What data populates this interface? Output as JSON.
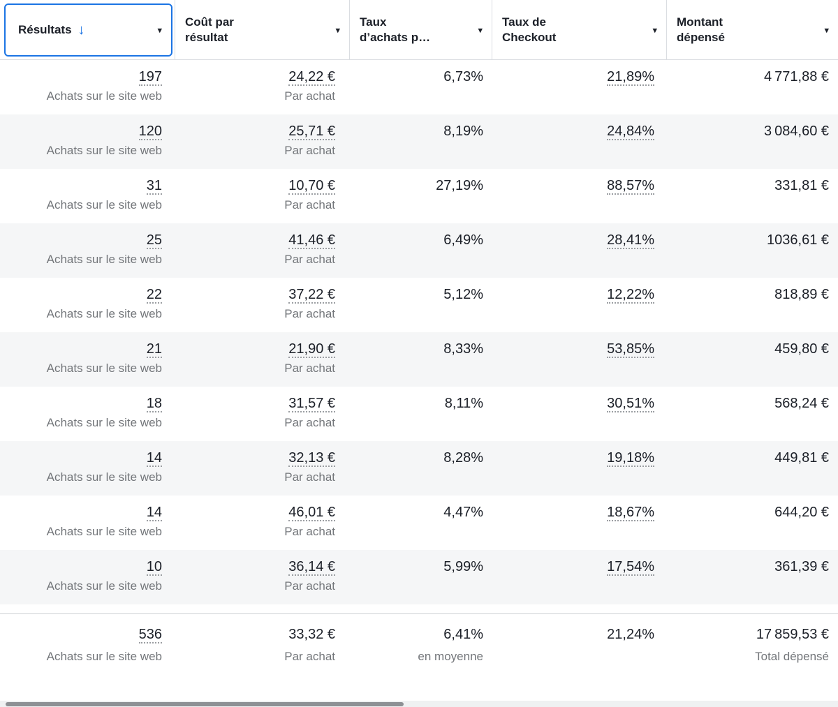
{
  "icons": {
    "sort_desc": "↓",
    "caret_down": "▾"
  },
  "colors": {
    "accent_blue": "#1b74e4",
    "row_alt_background": "#f5f6f7",
    "divider": "#dadde1",
    "text_primary": "#1c2028",
    "text_secondary": "#73767a",
    "scrollbar_thumb": "#8d9094"
  },
  "header": {
    "columns": [
      {
        "label": "Résultats",
        "sorted": "descending"
      },
      {
        "label": "Coût par résultat"
      },
      {
        "label": "Taux d’achats p…"
      },
      {
        "label": "Taux de Checkout"
      },
      {
        "label": "Montant dépensé"
      }
    ]
  },
  "rows": [
    {
      "results": "197",
      "results_label": "Achats sur le site web",
      "cost": "24,22 €",
      "cost_label": "Par achat",
      "purchase_rate": "6,73%",
      "checkout_rate": "21,89%",
      "spend": "4 771,88 €"
    },
    {
      "results": "120",
      "results_label": "Achats sur le site web",
      "cost": "25,71 €",
      "cost_label": "Par achat",
      "purchase_rate": "8,19%",
      "checkout_rate": "24,84%",
      "spend": "3 084,60 €"
    },
    {
      "results": "31",
      "results_label": "Achats sur le site web",
      "cost": "10,70 €",
      "cost_label": "Par achat",
      "purchase_rate": "27,19%",
      "checkout_rate": "88,57%",
      "spend": "331,81 €"
    },
    {
      "results": "25",
      "results_label": "Achats sur le site web",
      "cost": "41,46 €",
      "cost_label": "Par achat",
      "purchase_rate": "6,49%",
      "checkout_rate": "28,41%",
      "spend": "1036,61 €"
    },
    {
      "results": "22",
      "results_label": "Achats sur le site web",
      "cost": "37,22 €",
      "cost_label": "Par achat",
      "purchase_rate": "5,12%",
      "checkout_rate": "12,22%",
      "spend": "818,89 €"
    },
    {
      "results": "21",
      "results_label": "Achats sur le site web",
      "cost": "21,90 €",
      "cost_label": "Par achat",
      "purchase_rate": "8,33%",
      "checkout_rate": "53,85%",
      "spend": "459,80 €"
    },
    {
      "results": "18",
      "results_label": "Achats sur le site web",
      "cost": "31,57 €",
      "cost_label": "Par achat",
      "purchase_rate": "8,11%",
      "checkout_rate": "30,51%",
      "spend": "568,24 €"
    },
    {
      "results": "14",
      "results_label": "Achats sur le site web",
      "cost": "32,13 €",
      "cost_label": "Par achat",
      "purchase_rate": "8,28%",
      "checkout_rate": "19,18%",
      "spend": "449,81 €"
    },
    {
      "results": "14",
      "results_label": "Achats sur le site web",
      "cost": "46,01 €",
      "cost_label": "Par achat",
      "purchase_rate": "4,47%",
      "checkout_rate": "18,67%",
      "spend": "644,20 €"
    },
    {
      "results": "10",
      "results_label": "Achats sur le site web",
      "cost": "36,14 €",
      "cost_label": "Par achat",
      "purchase_rate": "5,99%",
      "checkout_rate": "17,54%",
      "spend": "361,39 €"
    }
  ],
  "footer": {
    "results": "536",
    "results_label": "Achats sur le site web",
    "cost": "33,32 €",
    "cost_label": "Par achat",
    "purchase_rate": "6,41%",
    "purchase_rate_label": "en moyenne",
    "checkout_rate": "21,24%",
    "spend": "17 859,53 €",
    "spend_label": "Total dépensé"
  }
}
